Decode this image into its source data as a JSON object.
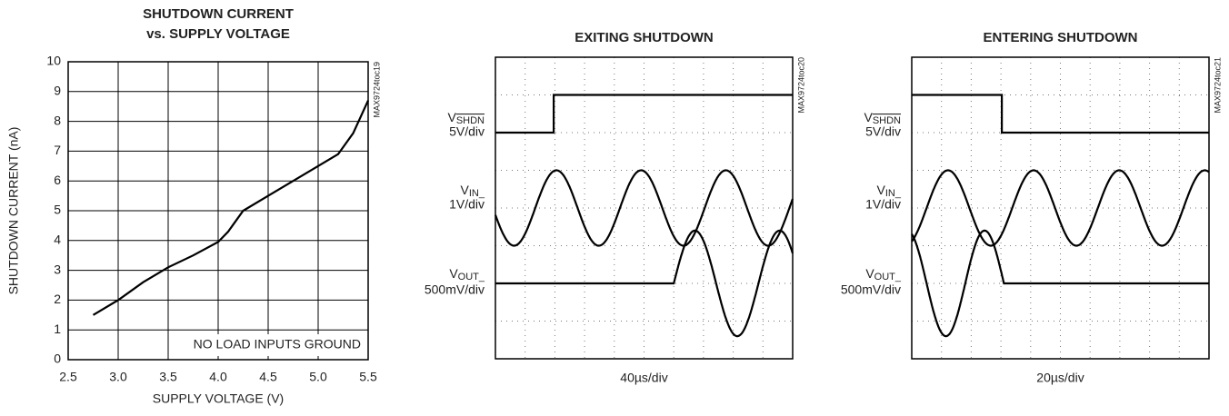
{
  "chart_data": [
    {
      "type": "line",
      "title": [
        "SHUTDOWN CURRENT",
        "vs. SUPPLY VOLTAGE"
      ],
      "x_label": "SUPPLY VOLTAGE (V)",
      "y_label": "SHUTDOWN CURRENT (nA)",
      "annotation": "NO LOAD INPUTS GROUND",
      "figure_id": "MAX9724toc19",
      "xlim": [
        2.5,
        5.5
      ],
      "xticks": [
        2.5,
        {
          "value": 3,
          "label": "3.0"
        },
        3.5,
        {
          "value": 4,
          "label": "4.0"
        },
        4.5,
        {
          "value": 5,
          "label": "5.0"
        },
        5.5
      ],
      "ylim": [
        0,
        10
      ],
      "yticks": [
        0,
        1,
        2,
        3,
        4,
        5,
        6,
        7,
        8,
        9,
        10
      ],
      "grid": true,
      "color": "#000000",
      "x": [
        2.75,
        3.0,
        3.25,
        3.5,
        3.75,
        4.0,
        4.1,
        4.25,
        4.5,
        4.75,
        5.0,
        5.2,
        5.35,
        5.5
      ],
      "values": [
        1.5,
        2.0,
        2.6,
        3.1,
        3.5,
        3.95,
        4.3,
        5.0,
        5.5,
        6.0,
        6.5,
        6.9,
        7.6,
        8.7
      ]
    },
    {
      "type": "scope",
      "title": "EXITING SHUTDOWN",
      "timebase": "40µs/div",
      "figure_id": "MAX9724toc20",
      "xlim": [
        0,
        10
      ],
      "ylim": [
        0,
        8
      ],
      "grid": true,
      "color": "#000000",
      "channels": [
        {
          "name": "V",
          "subscript": "SHDN",
          "overline": true,
          "scale": "5V/div",
          "trace": {
            "type": "step",
            "x": [
              0,
              1.96,
              1.96,
              10
            ],
            "values": [
              6,
              6,
              7,
              7
            ]
          }
        },
        {
          "name": "V",
          "subscript": "IN_",
          "scale": "1V/div",
          "trace": {
            "type": "sine",
            "offset": 4,
            "amplitude": 1,
            "period": 2.85,
            "x0": 1.34
          }
        },
        {
          "name": "V",
          "subscript": "OUT_",
          "scale": "500mV/div",
          "trace": {
            "type": "sine",
            "offset": 2,
            "amplitude": 1.4,
            "period": 2.85,
            "x0": 6.0,
            "start": 6.0
          }
        }
      ]
    },
    {
      "type": "scope",
      "title": "ENTERING SHUTDOWN",
      "timebase": "20µs/div",
      "figure_id": "MAX9724toc21",
      "xlim": [
        0,
        10
      ],
      "ylim": [
        0,
        8
      ],
      "grid": true,
      "color": "#000000",
      "channels": [
        {
          "name": "V",
          "subscript": "SHDN",
          "overline": true,
          "scale": "5V/div",
          "trace": {
            "type": "step",
            "x": [
              0,
              3.03,
              3.03,
              10
            ],
            "values": [
              7,
              7,
              6,
              6
            ]
          }
        },
        {
          "name": "V",
          "subscript": "IN_",
          "scale": "1V/div",
          "trace": {
            "type": "sine",
            "offset": 4,
            "amplitude": 1,
            "period": 2.88,
            "x0": 0.5
          }
        },
        {
          "name": "V",
          "subscript": "OUT_",
          "scale": "500mV/div",
          "trace": {
            "type": "sine",
            "offset": 2,
            "amplitude": 1.4,
            "period": 2.6,
            "x0": 1.8,
            "end": 3.1
          }
        }
      ]
    }
  ]
}
